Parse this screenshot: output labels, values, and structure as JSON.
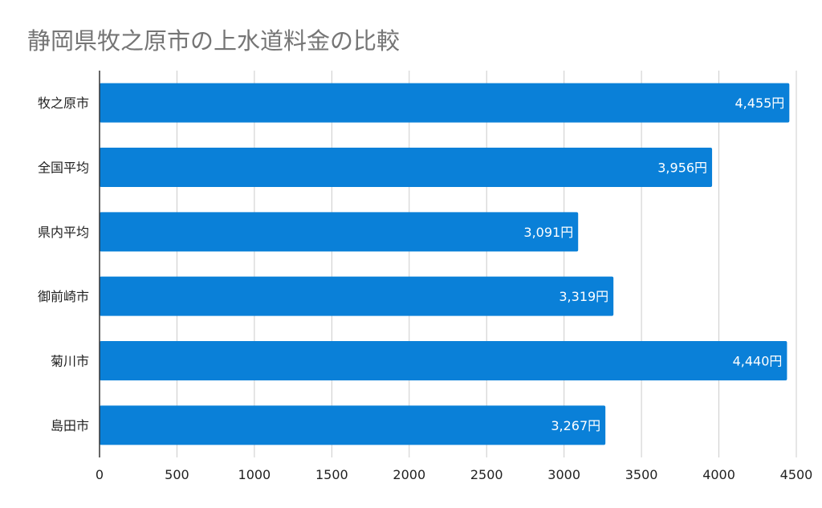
{
  "chart_data": {
    "type": "bar",
    "orientation": "horizontal",
    "title": "静岡県牧之原市の上水道料金の比較",
    "categories": [
      "牧之原市",
      "全国平均",
      "県内平均",
      "御前崎市",
      "菊川市",
      "島田市"
    ],
    "values": [
      4455,
      3956,
      3091,
      3319,
      4440,
      3267
    ],
    "data_labels": [
      "4,455円",
      "3,956円",
      "3,091円",
      "3,319円",
      "4,440円",
      "3,267円"
    ],
    "xlim": [
      0,
      4500
    ],
    "xticks": [
      "0",
      "500",
      "1000",
      "1500",
      "2000",
      "2500",
      "3000",
      "3500",
      "4000",
      "4500"
    ],
    "grid": true,
    "legend": "none",
    "colors": {
      "bar": "#0a80d8",
      "title": "#757575",
      "grid": "#cccccc"
    }
  }
}
